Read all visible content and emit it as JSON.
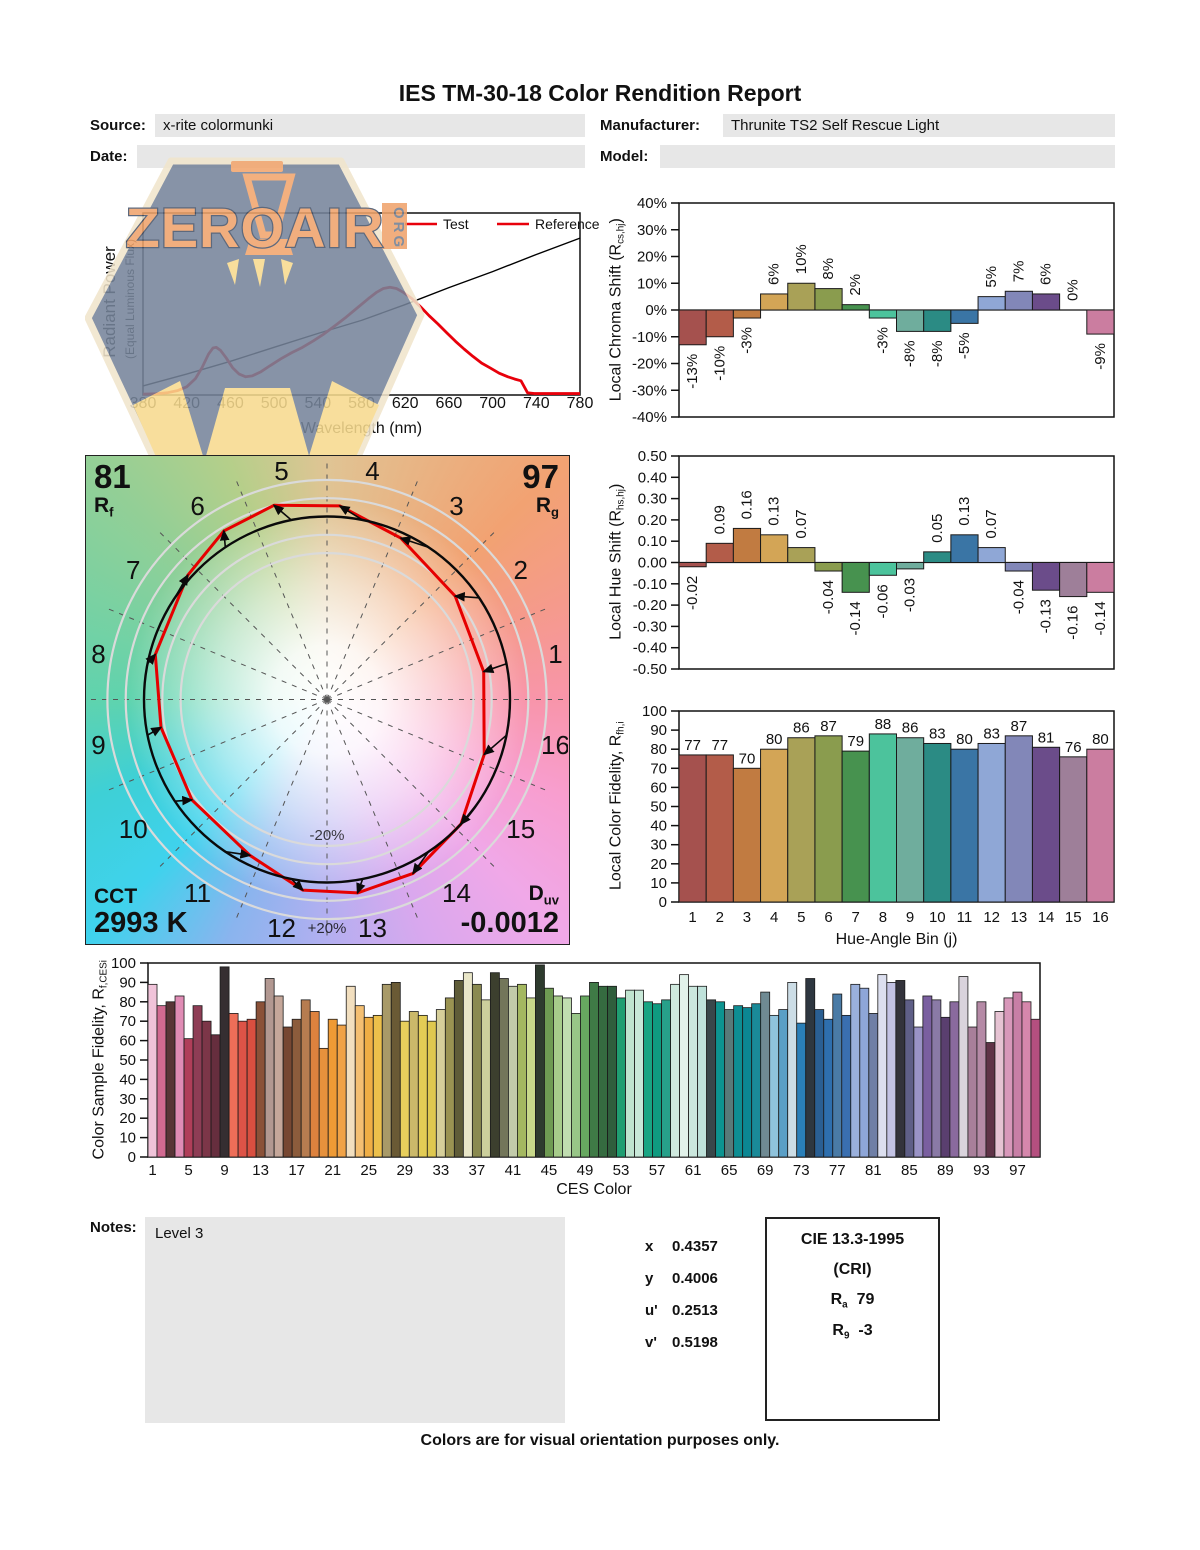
{
  "page": {
    "title": "IES TM-30-18 Color Rendition Report",
    "footer": "Colors are for visual orientation purposes only."
  },
  "form": {
    "source_label": "Source:",
    "source_value": "x-rite colormunki",
    "manufacturer_label": "Manufacturer:",
    "manufacturer_value": "Thrunite TS2 Self Rescue Light",
    "date_label": "Date:",
    "date_value": "",
    "model_label": "Model:",
    "model_value": "",
    "notes_label": "Notes:",
    "notes_value": "Level 3"
  },
  "watermark": {
    "text": "ZEROAIR",
    "org": "ORG"
  },
  "cvg": {
    "rf_value": "81",
    "rf_pre": "R",
    "rf_sub": "f",
    "rg_value": "97",
    "rg_pre": "R",
    "rg_sub": "g",
    "cct_label": "CCT",
    "cct_value": "2993 K",
    "duv_pre": "D",
    "duv_sub": "uv",
    "duv_value": "-0.0012",
    "plus_label": "+20%",
    "minus_label": "-20%",
    "bins": [
      "1",
      "2",
      "3",
      "4",
      "5",
      "6",
      "7",
      "8",
      "9",
      "10",
      "11",
      "12",
      "13",
      "14",
      "15",
      "16"
    ]
  },
  "chromaticity": {
    "rows": [
      {
        "label": "x",
        "value": "0.4357"
      },
      {
        "label": "y",
        "value": "0.4006"
      },
      {
        "label": "u'",
        "value": "0.2513"
      },
      {
        "label": "v'",
        "value": "0.5198"
      }
    ]
  },
  "cri": {
    "title": "CIE 13.3-1995",
    "subtitle": "(CRI)",
    "ra_pre": "R",
    "ra_sub": "a",
    "ra_value": "79",
    "r9_pre": "R",
    "r9_sub": "9",
    "r9_value": "-3"
  },
  "chart_data": [
    {
      "id": "spectral",
      "type": "line",
      "xlabel": "Wavelength (nm)",
      "ylabel": "Radiant Power",
      "ylabel2": "(Equal Luminous Flux)",
      "xlim": [
        380,
        780
      ],
      "x_ticks": [
        "380",
        "420",
        "460",
        "500",
        "540",
        "580",
        "620",
        "660",
        "700",
        "740",
        "780"
      ],
      "legend": [
        {
          "label": "Test",
          "swatch": "#e8000b",
          "text_color": "#e8000b"
        },
        {
          "label": "Reference",
          "swatch": "#e8000b",
          "text_color": "#000000"
        }
      ],
      "series": [
        {
          "name": "Test",
          "color": "#e8000b",
          "width": 2.8,
          "points": [
            [
              380,
              0.005
            ],
            [
              392,
              0.007
            ],
            [
              402,
              0.012
            ],
            [
              412,
              0.025
            ],
            [
              420,
              0.045
            ],
            [
              428,
              0.09
            ],
            [
              434,
              0.15
            ],
            [
              440,
              0.225
            ],
            [
              444,
              0.258
            ],
            [
              447,
              0.262
            ],
            [
              451,
              0.245
            ],
            [
              456,
              0.205
            ],
            [
              462,
              0.15
            ],
            [
              468,
              0.115
            ],
            [
              474,
              0.1
            ],
            [
              480,
              0.105
            ],
            [
              488,
              0.128
            ],
            [
              496,
              0.16
            ],
            [
              506,
              0.198
            ],
            [
              516,
              0.232
            ],
            [
              526,
              0.262
            ],
            [
              536,
              0.298
            ],
            [
              546,
              0.337
            ],
            [
              556,
              0.382
            ],
            [
              566,
              0.428
            ],
            [
              576,
              0.478
            ],
            [
              586,
              0.528
            ],
            [
              594,
              0.565
            ],
            [
              600,
              0.585
            ],
            [
              606,
              0.592
            ],
            [
              612,
              0.585
            ],
            [
              618,
              0.565
            ],
            [
              626,
              0.53
            ],
            [
              634,
              0.485
            ],
            [
              642,
              0.435
            ],
            [
              650,
              0.39
            ],
            [
              658,
              0.342
            ],
            [
              666,
              0.295
            ],
            [
              674,
              0.252
            ],
            [
              682,
              0.212
            ],
            [
              690,
              0.175
            ],
            [
              698,
              0.148
            ],
            [
              706,
              0.12
            ],
            [
              714,
              0.1
            ],
            [
              720,
              0.088
            ],
            [
              726,
              0.078
            ],
            [
              729,
              0.045
            ],
            [
              732,
              0.012
            ],
            [
              738,
              0.008
            ],
            [
              750,
              0.008
            ],
            [
              780,
              0.008
            ]
          ]
        },
        {
          "name": "Reference",
          "color": "#000000",
          "width": 1.4,
          "points": [
            [
              380,
              0.05
            ],
            [
              420,
              0.115
            ],
            [
              460,
              0.185
            ],
            [
              500,
              0.262
            ],
            [
              540,
              0.338
            ],
            [
              580,
              0.41
            ],
            [
              620,
              0.497
            ],
            [
              660,
              0.59
            ],
            [
              700,
              0.678
            ],
            [
              740,
              0.772
            ],
            [
              780,
              0.862
            ]
          ]
        }
      ]
    },
    {
      "id": "chroma_shift",
      "type": "bar",
      "ylabel_pre": "Local Chroma Shift (R",
      "ylabel_sub": "cs,hj",
      "ylabel_post": ")",
      "ylim": [
        -40,
        40
      ],
      "y_ticks": [
        "40%",
        "30%",
        "20%",
        "10%",
        "0%",
        "-10%",
        "-20%",
        "-30%",
        "-40%"
      ],
      "values": [
        -13,
        -10,
        -3,
        6,
        10,
        8,
        2,
        -3,
        -8,
        -8,
        -5,
        5,
        7,
        6,
        0,
        -9
      ],
      "labels": [
        "-13%",
        "-10%",
        "-3%",
        "6%",
        "10%",
        "8%",
        "2%",
        "-3%",
        "-8%",
        "-8%",
        "-5%",
        "5%",
        "7%",
        "6%",
        "0%",
        "-9%"
      ],
      "colors": [
        "#a5514e",
        "#b35c49",
        "#c17b41",
        "#d3a556",
        "#a9a157",
        "#8a9c4e",
        "#47924f",
        "#4cc39c",
        "#6fad9d",
        "#2b8b84",
        "#3a75a5",
        "#8fa7d6",
        "#8287b8",
        "#6b4c8a",
        "#9e7f99",
        "#cb7da0"
      ]
    },
    {
      "id": "hue_shift",
      "type": "bar",
      "ylabel_pre": "Local Hue Shift (R",
      "ylabel_sub": "hs,hj",
      "ylabel_post": ")",
      "ylim": [
        -0.5,
        0.5
      ],
      "y_ticks": [
        "0.50",
        "0.40",
        "0.30",
        "0.20",
        "0.10",
        "0.00",
        "-0.10",
        "-0.20",
        "-0.30",
        "-0.40",
        "-0.50"
      ],
      "values": [
        -0.02,
        0.09,
        0.16,
        0.13,
        0.07,
        -0.04,
        -0.14,
        -0.06,
        -0.03,
        0.05,
        0.13,
        0.07,
        -0.04,
        -0.13,
        -0.16,
        -0.14
      ],
      "labels": [
        "-0.02",
        "0.09",
        "0.16",
        "0.13",
        "0.07",
        "-0.04",
        "-0.14",
        "-0.06",
        "-0.03",
        "0.05",
        "0.13",
        "0.07",
        "-0.04",
        "-0.13",
        "-0.16",
        "-0.14"
      ],
      "colors": [
        "#a5514e",
        "#b35c49",
        "#c17b41",
        "#d3a556",
        "#a9a157",
        "#8a9c4e",
        "#47924f",
        "#4cc39c",
        "#6fad9d",
        "#2b8b84",
        "#3a75a5",
        "#8fa7d6",
        "#8287b8",
        "#6b4c8a",
        "#9e7f99",
        "#cb7da0"
      ]
    },
    {
      "id": "local_fidelity",
      "type": "bar",
      "ylabel_pre": "Local Color Fidelity, R",
      "ylabel_sub": "fh,i",
      "ylabel_post": "",
      "xlabel": "Hue-Angle Bin (j)",
      "ylim": [
        0,
        100
      ],
      "y_ticks": [
        "100",
        "90",
        "80",
        "70",
        "60",
        "50",
        "40",
        "30",
        "20",
        "10",
        "0"
      ],
      "x_ticks": [
        "1",
        "2",
        "3",
        "4",
        "5",
        "6",
        "7",
        "8",
        "9",
        "10",
        "11",
        "12",
        "13",
        "14",
        "15",
        "16"
      ],
      "values": [
        77,
        77,
        70,
        80,
        86,
        87,
        79,
        88,
        86,
        83,
        80,
        83,
        87,
        81,
        76,
        80
      ],
      "labels": [
        "77",
        "77",
        "70",
        "80",
        "86",
        "87",
        "79",
        "88",
        "86",
        "83",
        "80",
        "83",
        "87",
        "81",
        "76",
        "80"
      ],
      "colors": [
        "#a5514e",
        "#b35c49",
        "#c17b41",
        "#d3a556",
        "#a9a157",
        "#8a9c4e",
        "#47924f",
        "#4cc39c",
        "#6fad9d",
        "#2b8b84",
        "#3a75a5",
        "#8fa7d6",
        "#8287b8",
        "#6b4c8a",
        "#9e7f99",
        "#cb7da0"
      ]
    },
    {
      "id": "ces",
      "type": "bar",
      "ylabel_pre": "Color Sample Fidelity, R",
      "ylabel_sub": "f,CESi",
      "ylabel_post": "",
      "xlabel": "CES Color",
      "ylim": [
        0,
        100
      ],
      "y_ticks": [
        "100",
        "90",
        "80",
        "70",
        "60",
        "50",
        "40",
        "30",
        "20",
        "10",
        "0"
      ],
      "x_ticks": [
        "1",
        "5",
        "9",
        "13",
        "17",
        "21",
        "25",
        "29",
        "33",
        "37",
        "41",
        "45",
        "49",
        "53",
        "57",
        "61",
        "65",
        "69",
        "73",
        "77",
        "81",
        "85",
        "89",
        "93",
        "97"
      ],
      "values": [
        89,
        78,
        80,
        83,
        61,
        78,
        70,
        63,
        98,
        74,
        70,
        71,
        80,
        92,
        83,
        67,
        71,
        81,
        75,
        56,
        71,
        68,
        88,
        78,
        72,
        73,
        89,
        90,
        70,
        75,
        73,
        70,
        76,
        82,
        91,
        95,
        89,
        81,
        95,
        92,
        88,
        89,
        82,
        99,
        87,
        83,
        82,
        74,
        83,
        90,
        88,
        88,
        82,
        86,
        86,
        80,
        79,
        81,
        89,
        94,
        88,
        88,
        81,
        80,
        76,
        78,
        77,
        79,
        85,
        73,
        76,
        90,
        69,
        92,
        76,
        71,
        84,
        73,
        89,
        87,
        74,
        94,
        90,
        91,
        81,
        67,
        83,
        81,
        72,
        80,
        93,
        67,
        80,
        59,
        75,
        82,
        85,
        80,
        71
      ],
      "colors": [
        "#f0c3d9",
        "#d26a91",
        "#593537",
        "#e08cb5",
        "#b03e59",
        "#8e3d55",
        "#7c3648",
        "#662e3e",
        "#352e31",
        "#ee6e58",
        "#dd5347",
        "#d94f40",
        "#8a5138",
        "#b29891",
        "#c5a79a",
        "#774732",
        "#8c5c3c",
        "#b67c50",
        "#dd823e",
        "#e6913c",
        "#ee9a35",
        "#f0a246",
        "#f2dfbf",
        "#f4bf72",
        "#efae45",
        "#ecc04b",
        "#a89a68",
        "#6a5a35",
        "#e8cf5c",
        "#cbb96a",
        "#e3cc55",
        "#dfc84f",
        "#d6cf9a",
        "#9a9352",
        "#5f5c38",
        "#e9e6c8",
        "#8a8a50",
        "#cccf9c",
        "#3c3f2e",
        "#73765a",
        "#c2cbaa",
        "#a4b860",
        "#c8d98a",
        "#2e3b2e",
        "#6f9b53",
        "#a7cc8b",
        "#c0ddb0",
        "#98c687",
        "#67a860",
        "#3f7a46",
        "#356b40",
        "#2f5e3c",
        "#1f9e71",
        "#bfe4cf",
        "#c8e8d8",
        "#19a583",
        "#0f9b80",
        "#27a08a",
        "#cfe9de",
        "#e2f2ea",
        "#cbe7dd",
        "#bfe2da",
        "#39474a",
        "#0d9490",
        "#597a79",
        "#0e8e93",
        "#0b8793",
        "#1a8a98",
        "#6f8a93",
        "#8fc3dc",
        "#5a9fc6",
        "#ccdde6",
        "#2a7fb8",
        "#2e3740",
        "#2a5f93",
        "#2e6fae",
        "#4a7ba6",
        "#3a6fb0",
        "#9ab0dc",
        "#8ea6d8",
        "#6f7fa6",
        "#dcdfef",
        "#c3c3e4",
        "#33333b",
        "#5f5f87",
        "#9a93c6",
        "#7a5fa0",
        "#8a7aa6",
        "#5a3f6f",
        "#8a6a9e",
        "#d9d3dc",
        "#a87f9a",
        "#b58aa6",
        "#5f3347",
        "#e6c3d3",
        "#d898ba",
        "#c87fa6",
        "#d687ac",
        "#b54f7f"
      ]
    },
    {
      "id": "cvg",
      "type": "color-vector-graphic",
      "rf": 81,
      "rg": 97,
      "cct": "2993 K",
      "duv": -0.0012,
      "note": "red test polygon built from chroma_shift (%) and hue_shift (rad) per hue-angle bin"
    }
  ]
}
